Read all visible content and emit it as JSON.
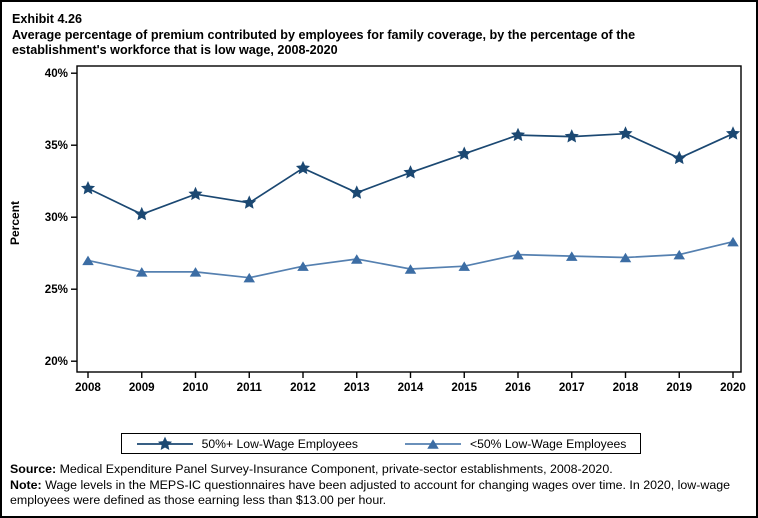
{
  "page": {
    "exhibit_label": "Exhibit 4.26",
    "title": "Average percentage of premium contributed by employees for family coverage, by the percentage of the establishment's workforce that is low wage, 2008-2020"
  },
  "chart_data": {
    "type": "line",
    "title": "Average percentage of premium contributed by employees for family coverage, by the percentage of the establishment's workforce that is low wage, 2008-2020",
    "xlabel": "",
    "ylabel": "Percent",
    "ylim": [
      20,
      40
    ],
    "yticks": [
      20,
      25,
      30,
      35,
      40
    ],
    "ytick_labels": [
      "20%",
      "25%",
      "30%",
      "35%",
      "40%"
    ],
    "categories": [
      "2008",
      "2009",
      "2010",
      "2011",
      "2012",
      "2013",
      "2014",
      "2015",
      "2016",
      "2017",
      "2018",
      "2019",
      "2020"
    ],
    "grid": false,
    "legend_position": "bottom-outside",
    "series": [
      {
        "name": "50%+ Low-Wage Employees",
        "marker": "star",
        "color": "#1B4872",
        "line_color": "#1B4872",
        "values": [
          32.0,
          30.2,
          31.6,
          31.0,
          33.4,
          31.7,
          33.1,
          34.4,
          35.7,
          35.6,
          35.8,
          34.1,
          35.8
        ]
      },
      {
        "name": "<50% Low-Wage Employees",
        "marker": "triangle",
        "color": "#3C6DA4",
        "line_color": "#5580B0",
        "values": [
          27.0,
          26.2,
          26.2,
          25.8,
          26.6,
          27.1,
          26.4,
          26.6,
          27.4,
          27.3,
          27.2,
          27.4,
          28.3
        ]
      }
    ],
    "axis_color": "#000000"
  },
  "footer": {
    "source_label": "Source:",
    "source_text": "Medical Expenditure Panel Survey-Insurance Component, private-sector establishments, 2008-2020.",
    "note_label": "Note:",
    "note_text": "Wage levels in the MEPS-IC questionnaires have been adjusted to account for changing wages over time.  In 2020, low-wage employees were defined as those earning less than $13.00 per hour."
  }
}
